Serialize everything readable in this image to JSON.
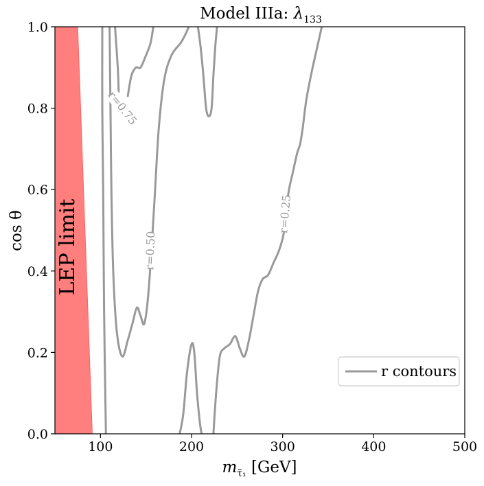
{
  "chart_data": {
    "type": "line",
    "title_prefix": "Model IIIa: ",
    "title_symbol": "λ",
    "title_subscript": "133",
    "xlabel_symbol": "m",
    "xlabel_subscript": "τ̃₁",
    "xlabel_unit": "[GeV]",
    "ylabel": "cos θ",
    "xlim": [
      50,
      500
    ],
    "ylim": [
      0.0,
      1.0
    ],
    "x_ticks": [
      100,
      200,
      300,
      400,
      500
    ],
    "y_ticks": [
      "0.0",
      "0.2",
      "0.4",
      "0.6",
      "0.8",
      "1.0"
    ],
    "excluded_region": {
      "label": "LEP limit",
      "color": "#ff7f7f",
      "polygon": [
        [
          50,
          0.0
        ],
        [
          50,
          1.0
        ],
        [
          75,
          1.0
        ],
        [
          91,
          0.0
        ]
      ]
    },
    "contour_color": "#999999",
    "legend": {
      "label": "r contours",
      "position": "lower-right"
    },
    "contours": [
      {
        "id": "c1",
        "points": [
          [
            106,
            0.0
          ],
          [
            104,
            0.3
          ],
          [
            103,
            0.6
          ],
          [
            102,
            0.8
          ],
          [
            102,
            1.0
          ]
        ]
      },
      {
        "id": "c2",
        "points": [
          [
            110,
            1.0
          ],
          [
            111,
            0.8
          ],
          [
            112,
            0.6
          ],
          [
            114,
            0.4
          ],
          [
            118,
            0.25
          ],
          [
            124,
            0.19
          ],
          [
            130,
            0.23
          ],
          [
            135,
            0.27
          ],
          [
            140,
            0.31
          ],
          [
            144,
            0.29
          ],
          [
            148,
            0.27
          ],
          [
            152,
            0.33
          ],
          [
            156,
            0.45
          ],
          [
            160,
            0.6
          ],
          [
            164,
            0.75
          ],
          [
            170,
            0.87
          ],
          [
            178,
            0.93
          ],
          [
            188,
            0.96
          ],
          [
            193,
            0.98
          ],
          [
            197,
            1.0
          ]
        ]
      },
      {
        "id": "c3",
        "points": [
          [
            116,
            1.0
          ],
          [
            119,
            0.9
          ],
          [
            120,
            0.84
          ]
        ]
      },
      {
        "id": "c4",
        "points": [
          [
            130,
            0.83
          ],
          [
            134,
            0.88
          ],
          [
            139,
            0.9
          ],
          [
            144,
            0.9
          ],
          [
            150,
            0.93
          ],
          [
            155,
            0.96
          ],
          [
            158,
            1.0
          ]
        ]
      },
      {
        "id": "c5",
        "points": [
          [
            207,
            1.0
          ],
          [
            210,
            0.95
          ],
          [
            213,
            0.88
          ],
          [
            216,
            0.8
          ],
          [
            219,
            0.78
          ],
          [
            222,
            0.8
          ],
          [
            224,
            0.88
          ],
          [
            226,
            0.95
          ],
          [
            228,
            1.0
          ]
        ]
      },
      {
        "id": "c6",
        "points": [
          [
            187,
            0.0
          ],
          [
            191,
            0.05
          ],
          [
            195,
            0.15
          ],
          [
            200,
            0.22
          ],
          [
            203,
            0.2
          ],
          [
            206,
            0.1
          ],
          [
            209,
            0.03
          ],
          [
            211,
            0.0
          ]
        ]
      },
      {
        "id": "c7",
        "points": [
          [
            224,
            0.0
          ],
          [
            227,
            0.1
          ],
          [
            231,
            0.19
          ],
          [
            236,
            0.21
          ],
          [
            242,
            0.22
          ],
          [
            248,
            0.24
          ],
          [
            253,
            0.21
          ],
          [
            258,
            0.19
          ],
          [
            263,
            0.23
          ],
          [
            268,
            0.29
          ],
          [
            273,
            0.35
          ],
          [
            278,
            0.38
          ],
          [
            284,
            0.39
          ],
          [
            290,
            0.42
          ],
          [
            296,
            0.45
          ],
          [
            301,
            0.49
          ],
          [
            304,
            0.55
          ],
          [
            307,
            0.6
          ],
          [
            311,
            0.64
          ],
          [
            316,
            0.69
          ],
          [
            319,
            0.71
          ],
          [
            322,
            0.75
          ],
          [
            326,
            0.82
          ],
          [
            332,
            0.89
          ],
          [
            338,
            0.95
          ],
          [
            343,
            1.0
          ]
        ]
      }
    ],
    "contour_labels": [
      {
        "text": "r=0.75",
        "x": 124,
        "y": 0.8,
        "angle": 52
      },
      {
        "text": "r=0.50",
        "x": 155,
        "y": 0.45,
        "angle": -88
      },
      {
        "text": "r=0.25",
        "x": 303,
        "y": 0.54,
        "angle": -85
      }
    ]
  }
}
